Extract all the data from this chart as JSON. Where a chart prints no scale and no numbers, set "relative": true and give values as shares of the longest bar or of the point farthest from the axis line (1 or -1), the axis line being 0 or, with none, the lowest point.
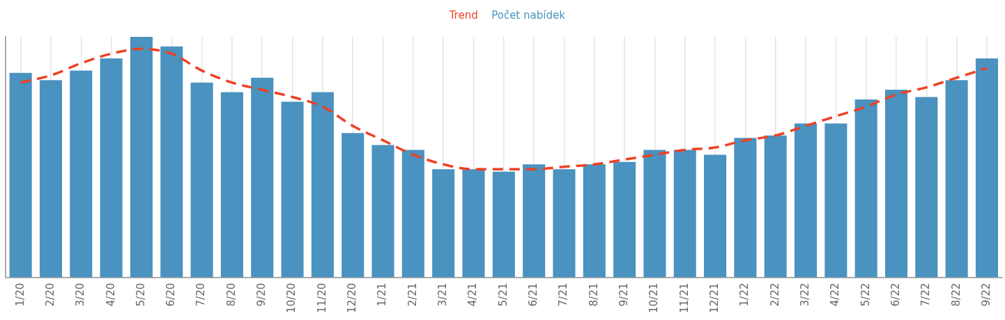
{
  "chart_data": {
    "type": "bar",
    "relative": true,
    "grid": "x",
    "legend": "top",
    "categories": [
      "1/20",
      "2/20",
      "3/20",
      "4/20",
      "5/20",
      "6/20",
      "7/20",
      "8/20",
      "9/20",
      "10/20",
      "11/20",
      "12/20",
      "1/21",
      "2/21",
      "3/21",
      "4/21",
      "5/21",
      "6/21",
      "7/21",
      "8/21",
      "9/21",
      "10/21",
      "11/21",
      "12/21",
      "1/22",
      "2/22",
      "3/22",
      "4/22",
      "5/22",
      "6/22",
      "7/22",
      "8/22",
      "9/22"
    ],
    "series": [
      {
        "name": "Trend",
        "type": "line",
        "line_style": "dashed",
        "color": "#ee4123",
        "values": [
          0.81,
          0.84,
          0.89,
          0.93,
          0.95,
          0.93,
          0.86,
          0.81,
          0.78,
          0.75,
          0.71,
          0.63,
          0.57,
          0.51,
          0.47,
          0.45,
          0.45,
          0.45,
          0.46,
          0.47,
          0.49,
          0.51,
          0.53,
          0.54,
          0.57,
          0.59,
          0.63,
          0.67,
          0.71,
          0.76,
          0.79,
          0.83,
          0.87
        ]
      },
      {
        "name": "Počet nabídek",
        "color": "#4a92bf",
        "values": [
          0.85,
          0.82,
          0.86,
          0.91,
          1,
          0.96,
          0.81,
          0.77,
          0.83,
          0.73,
          0.77,
          0.6,
          0.55,
          0.53,
          0.45,
          0.45,
          0.44,
          0.47,
          0.45,
          0.47,
          0.48,
          0.53,
          0.53,
          0.51,
          0.58,
          0.59,
          0.64,
          0.64,
          0.74,
          0.78,
          0.75,
          0.82,
          0.91
        ]
      }
    ]
  }
}
